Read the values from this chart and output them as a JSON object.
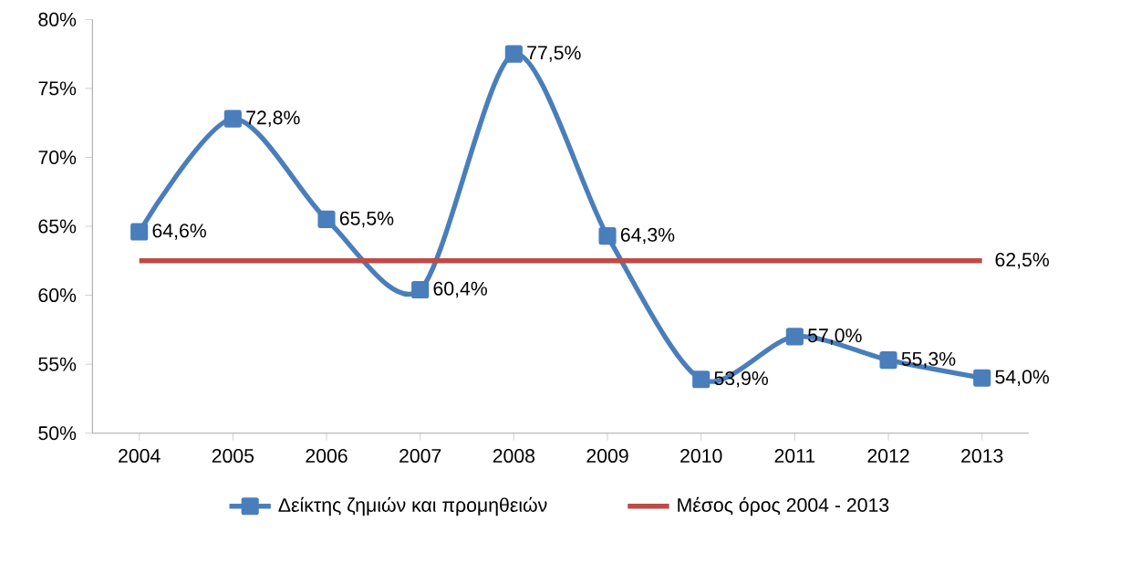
{
  "chart_data": {
    "type": "line",
    "categories": [
      "2004",
      "2005",
      "2006",
      "2007",
      "2008",
      "2009",
      "2010",
      "2011",
      "2012",
      "2013"
    ],
    "series": [
      {
        "name": "Δείκτης ζημιών και προμηθειών",
        "color": "#4a7ebb",
        "marker": "square",
        "values": [
          64.6,
          72.8,
          65.5,
          60.4,
          77.5,
          64.3,
          53.9,
          57.0,
          55.3,
          54.0
        ],
        "value_labels": [
          "64,6%",
          "72,8%",
          "65,5%",
          "60,4%",
          "77,5%",
          "64,3%",
          "53,9%",
          "57,0%",
          "55,3%",
          "54,0%"
        ]
      },
      {
        "name": "Μέσος όρος 2004 - 2013",
        "color": "#be4b48",
        "marker": "none",
        "values": [
          62.5,
          62.5,
          62.5,
          62.5,
          62.5,
          62.5,
          62.5,
          62.5,
          62.5,
          62.5
        ],
        "value_labels": [
          null,
          null,
          null,
          null,
          null,
          null,
          null,
          null,
          null,
          "62,5%"
        ]
      }
    ],
    "ylim": [
      50,
      80
    ],
    "yticks": [
      {
        "value": 50,
        "label": "50%"
      },
      {
        "value": 55,
        "label": "55%"
      },
      {
        "value": 60,
        "label": "60%"
      },
      {
        "value": 65,
        "label": "65%"
      },
      {
        "value": 70,
        "label": "70%"
      },
      {
        "value": 75,
        "label": "75%"
      },
      {
        "value": 80,
        "label": "80%"
      }
    ],
    "grid": false,
    "legend": "bottom"
  }
}
